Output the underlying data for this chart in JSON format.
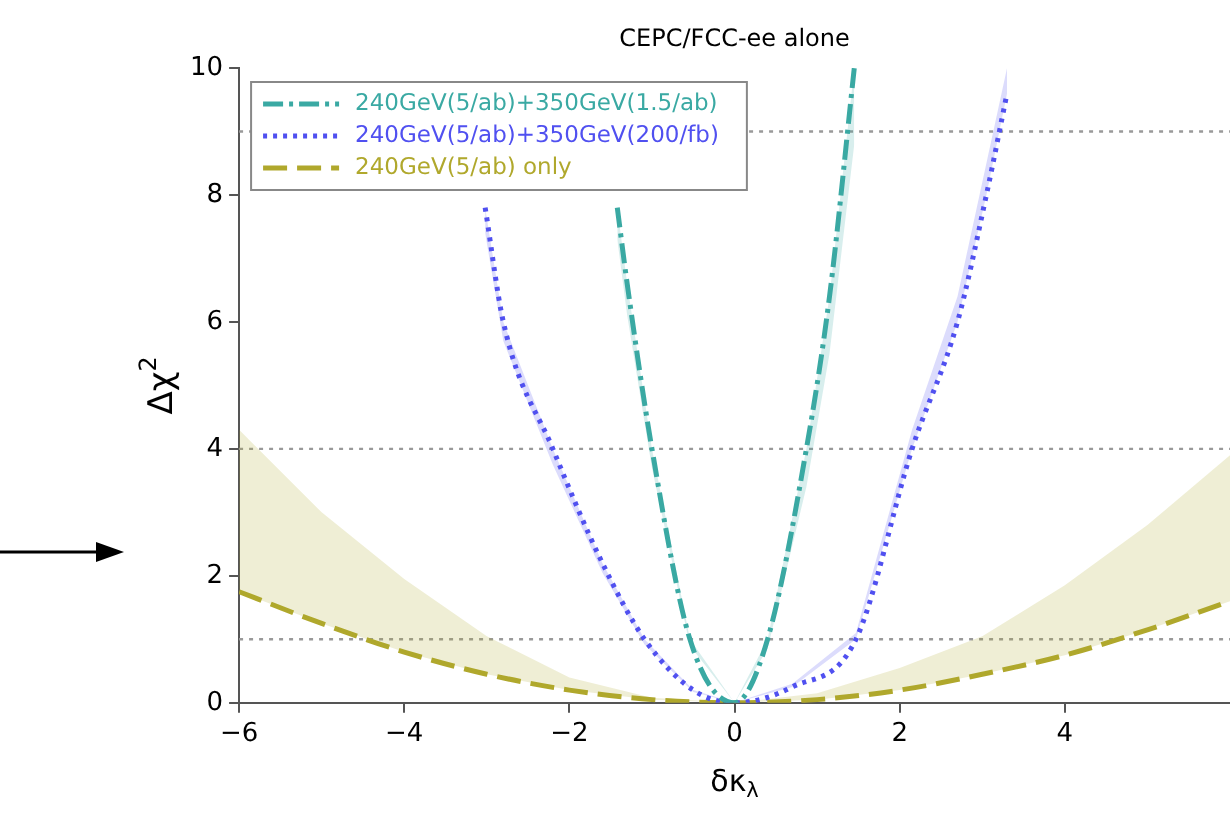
{
  "chart_data": {
    "type": "line",
    "title": "CEPC/FCC-ee alone",
    "xlabel": "δκ$_{λ}$",
    "ylabel": "Δχ$^{2}$",
    "xlim": [
      -6,
      6
    ],
    "xticks": [
      -6,
      -4,
      -2,
      0,
      2,
      4
    ],
    "ylim": [
      0,
      10
    ],
    "yticks": [
      0,
      2,
      4,
      6,
      8,
      10
    ],
    "grid": false,
    "legend": "top left",
    "marker": "none",
    "ref_lines": [
      {
        "axis": "y",
        "value": 1,
        "color": "#999999",
        "line_style": "dotted"
      },
      {
        "axis": "y",
        "value": 4,
        "color": "#999999",
        "line_style": "dotted"
      },
      {
        "axis": "y",
        "value": 9,
        "color": "#999999",
        "line_style": "dotted"
      }
    ],
    "series": [
      {
        "name": "240GeV(5/ab)+350GeV(1.5/ab)",
        "color": "#3aa9a3",
        "line_style": "dashdot",
        "x": [
          -1.42,
          -1.3,
          -1.0,
          -0.54,
          0,
          0.4,
          0.87,
          1.15,
          1.45
        ],
        "values": [
          7.8,
          6.6,
          4,
          1,
          0,
          1,
          4,
          6.4,
          10
        ],
        "lower": [
          7.3,
          6.1,
          3.7,
          0.9,
          0,
          0.85,
          3.4,
          5.5,
          8.8
        ],
        "upper": [
          7.8,
          6.6,
          4,
          1,
          0,
          1,
          4,
          6.4,
          10
        ]
      },
      {
        "name": "240GeV(5/ab)+350GeV(200/fb)",
        "color": "#5050f0",
        "line_style": "dotted",
        "x": [
          -3.02,
          -2.8,
          -2.2,
          -1.6,
          -1.09,
          -0.5,
          0,
          0.7,
          1.47,
          2.15,
          2.7,
          3.05,
          3.3
        ],
        "values": [
          7.8,
          6,
          4,
          2.2,
          1,
          0.2,
          0,
          0.25,
          1,
          4,
          6,
          8,
          9.6
        ],
        "lower": [
          7.4,
          5.7,
          3.75,
          2.05,
          0.92,
          0.17,
          0,
          0.25,
          1,
          4,
          6,
          8,
          9.6
        ],
        "upper": [
          7.8,
          6,
          4,
          2.2,
          1,
          0.2,
          0,
          0.3,
          1.1,
          4.3,
          6.4,
          8.5,
          10
        ]
      },
      {
        "name": "240GeV(5/ab) only",
        "color": "#b0a82c",
        "line_style": "dashed",
        "x": [
          -6,
          -5,
          -4,
          -3,
          -2,
          -1,
          0,
          1,
          2,
          3,
          4,
          5,
          6
        ],
        "values": [
          1.75,
          1.25,
          0.8,
          0.45,
          0.2,
          0.05,
          0,
          0.05,
          0.2,
          0.45,
          0.75,
          1.15,
          1.6
        ],
        "lower": [
          1.75,
          1.25,
          0.8,
          0.45,
          0.2,
          0.05,
          0,
          0.05,
          0.2,
          0.45,
          0.75,
          1.15,
          1.6
        ],
        "upper": [
          4.3,
          3.0,
          1.95,
          1.05,
          0.4,
          0.08,
          0,
          0.15,
          0.55,
          1.05,
          1.85,
          2.8,
          3.9
        ]
      }
    ]
  }
}
